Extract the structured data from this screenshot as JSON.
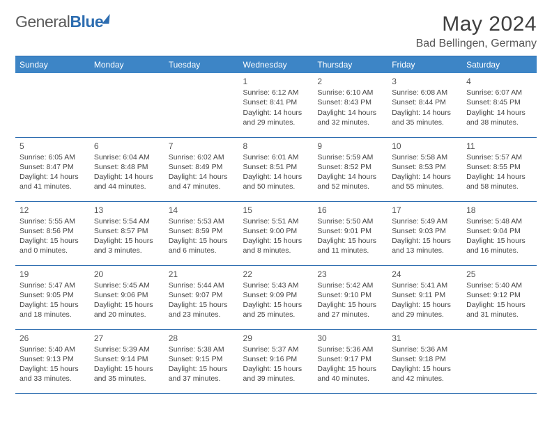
{
  "logo": {
    "word1": "General",
    "word2": "Blue"
  },
  "title": "May 2024",
  "location": "Bad Bellingen, Germany",
  "colors": {
    "header_bg": "#3d85c6",
    "header_text": "#ffffff",
    "rule": "#2d6db0",
    "body_bg": "#ffffff",
    "text": "#444444",
    "title_text": "#404040"
  },
  "day_names": [
    "Sunday",
    "Monday",
    "Tuesday",
    "Wednesday",
    "Thursday",
    "Friday",
    "Saturday"
  ],
  "weeks": [
    [
      null,
      null,
      null,
      {
        "d": "1",
        "sr": "6:12 AM",
        "ss": "8:41 PM",
        "dh": 14,
        "dm": 29
      },
      {
        "d": "2",
        "sr": "6:10 AM",
        "ss": "8:43 PM",
        "dh": 14,
        "dm": 32
      },
      {
        "d": "3",
        "sr": "6:08 AM",
        "ss": "8:44 PM",
        "dh": 14,
        "dm": 35
      },
      {
        "d": "4",
        "sr": "6:07 AM",
        "ss": "8:45 PM",
        "dh": 14,
        "dm": 38
      }
    ],
    [
      {
        "d": "5",
        "sr": "6:05 AM",
        "ss": "8:47 PM",
        "dh": 14,
        "dm": 41
      },
      {
        "d": "6",
        "sr": "6:04 AM",
        "ss": "8:48 PM",
        "dh": 14,
        "dm": 44
      },
      {
        "d": "7",
        "sr": "6:02 AM",
        "ss": "8:49 PM",
        "dh": 14,
        "dm": 47
      },
      {
        "d": "8",
        "sr": "6:01 AM",
        "ss": "8:51 PM",
        "dh": 14,
        "dm": 50
      },
      {
        "d": "9",
        "sr": "5:59 AM",
        "ss": "8:52 PM",
        "dh": 14,
        "dm": 52
      },
      {
        "d": "10",
        "sr": "5:58 AM",
        "ss": "8:53 PM",
        "dh": 14,
        "dm": 55
      },
      {
        "d": "11",
        "sr": "5:57 AM",
        "ss": "8:55 PM",
        "dh": 14,
        "dm": 58
      }
    ],
    [
      {
        "d": "12",
        "sr": "5:55 AM",
        "ss": "8:56 PM",
        "dh": 15,
        "dm": 0
      },
      {
        "d": "13",
        "sr": "5:54 AM",
        "ss": "8:57 PM",
        "dh": 15,
        "dm": 3
      },
      {
        "d": "14",
        "sr": "5:53 AM",
        "ss": "8:59 PM",
        "dh": 15,
        "dm": 6
      },
      {
        "d": "15",
        "sr": "5:51 AM",
        "ss": "9:00 PM",
        "dh": 15,
        "dm": 8
      },
      {
        "d": "16",
        "sr": "5:50 AM",
        "ss": "9:01 PM",
        "dh": 15,
        "dm": 11
      },
      {
        "d": "17",
        "sr": "5:49 AM",
        "ss": "9:03 PM",
        "dh": 15,
        "dm": 13
      },
      {
        "d": "18",
        "sr": "5:48 AM",
        "ss": "9:04 PM",
        "dh": 15,
        "dm": 16
      }
    ],
    [
      {
        "d": "19",
        "sr": "5:47 AM",
        "ss": "9:05 PM",
        "dh": 15,
        "dm": 18
      },
      {
        "d": "20",
        "sr": "5:45 AM",
        "ss": "9:06 PM",
        "dh": 15,
        "dm": 20
      },
      {
        "d": "21",
        "sr": "5:44 AM",
        "ss": "9:07 PM",
        "dh": 15,
        "dm": 23
      },
      {
        "d": "22",
        "sr": "5:43 AM",
        "ss": "9:09 PM",
        "dh": 15,
        "dm": 25
      },
      {
        "d": "23",
        "sr": "5:42 AM",
        "ss": "9:10 PM",
        "dh": 15,
        "dm": 27
      },
      {
        "d": "24",
        "sr": "5:41 AM",
        "ss": "9:11 PM",
        "dh": 15,
        "dm": 29
      },
      {
        "d": "25",
        "sr": "5:40 AM",
        "ss": "9:12 PM",
        "dh": 15,
        "dm": 31
      }
    ],
    [
      {
        "d": "26",
        "sr": "5:40 AM",
        "ss": "9:13 PM",
        "dh": 15,
        "dm": 33
      },
      {
        "d": "27",
        "sr": "5:39 AM",
        "ss": "9:14 PM",
        "dh": 15,
        "dm": 35
      },
      {
        "d": "28",
        "sr": "5:38 AM",
        "ss": "9:15 PM",
        "dh": 15,
        "dm": 37
      },
      {
        "d": "29",
        "sr": "5:37 AM",
        "ss": "9:16 PM",
        "dh": 15,
        "dm": 39
      },
      {
        "d": "30",
        "sr": "5:36 AM",
        "ss": "9:17 PM",
        "dh": 15,
        "dm": 40
      },
      {
        "d": "31",
        "sr": "5:36 AM",
        "ss": "9:18 PM",
        "dh": 15,
        "dm": 42
      },
      null
    ]
  ],
  "labels": {
    "sunrise": "Sunrise:",
    "sunset": "Sunset:",
    "daylight_prefix": "Daylight:",
    "hours_word": "hours",
    "and_word": "and",
    "minutes_word": "minutes."
  }
}
